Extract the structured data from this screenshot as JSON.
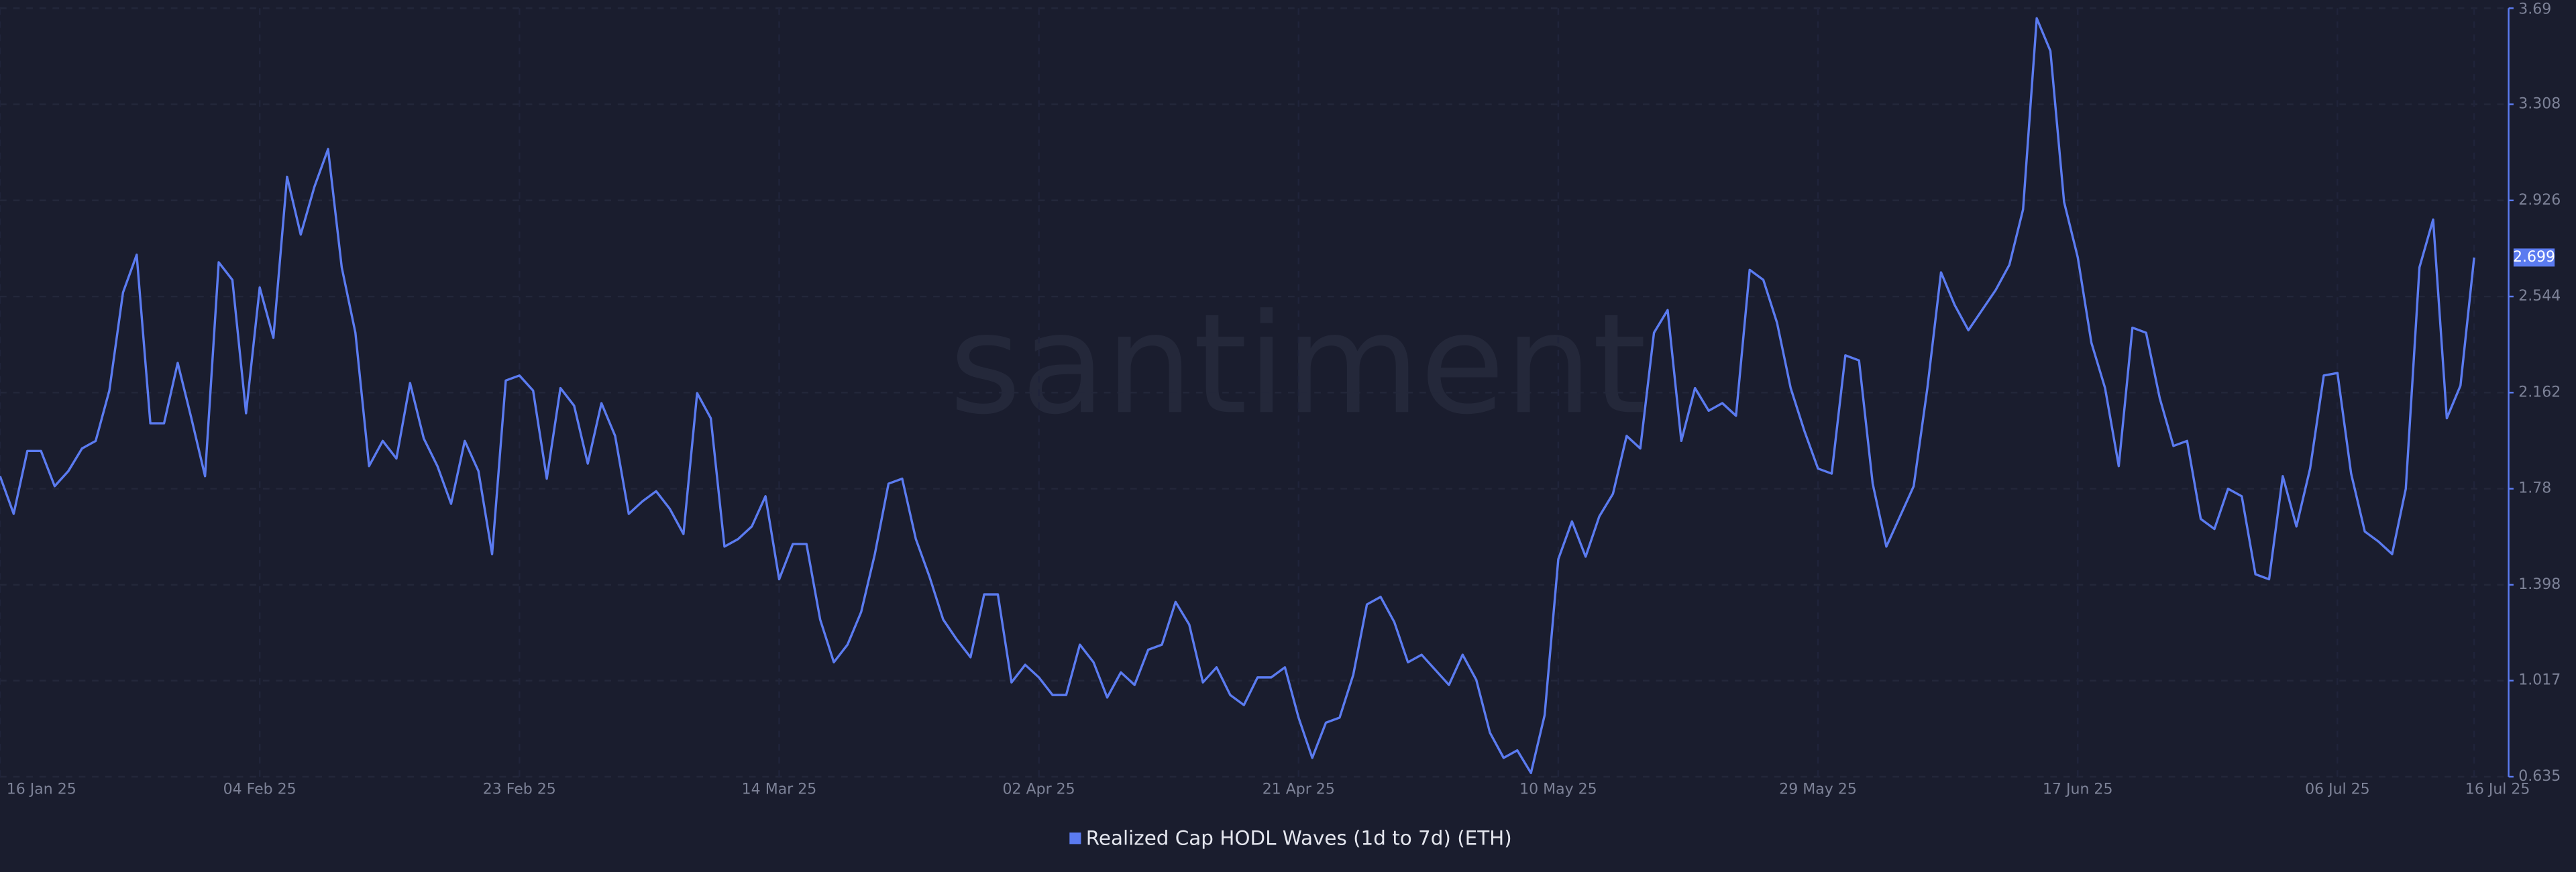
{
  "chart_data": {
    "type": "line",
    "watermark": "santiment",
    "categories": [
      "16 Jan 25",
      null,
      null,
      null,
      null,
      null,
      null,
      null,
      null,
      null,
      null,
      null,
      null,
      null,
      null,
      null,
      null,
      null,
      null,
      "04 Feb 25",
      null,
      null,
      null,
      null,
      null,
      null,
      null,
      null,
      null,
      null,
      null,
      null,
      null,
      null,
      null,
      null,
      null,
      null,
      "23 Feb 25",
      null,
      null,
      null,
      null,
      null,
      null,
      null,
      null,
      null,
      null,
      null,
      null,
      null,
      null,
      null,
      null,
      null,
      null,
      "14 Mar 25",
      null,
      null,
      null,
      null,
      null,
      null,
      null,
      null,
      null,
      null,
      null,
      null,
      null,
      null,
      null,
      null,
      null,
      null,
      "02 Apr 25",
      null,
      null,
      null,
      null,
      null,
      null,
      null,
      null,
      null,
      null,
      null,
      null,
      null,
      null,
      null,
      null,
      null,
      null,
      "21 Apr 25",
      null,
      null,
      null,
      null,
      null,
      null,
      null,
      null,
      null,
      null,
      null,
      null,
      null,
      null,
      null,
      null,
      null,
      null,
      "10 May 25",
      null,
      null,
      null,
      null,
      null,
      null,
      null,
      null,
      null,
      null,
      null,
      null,
      null,
      null,
      null,
      null,
      null,
      null,
      "29 May 25",
      null,
      null,
      null,
      null,
      null,
      null,
      null,
      null,
      null,
      null,
      null,
      null,
      null,
      null,
      null,
      null,
      null,
      null,
      "17 Jun 25",
      null,
      null,
      null,
      null,
      null,
      null,
      null,
      null,
      null,
      null,
      null,
      null,
      null,
      null,
      null,
      null,
      null,
      null,
      "06 Jul 25",
      null,
      null,
      null,
      null,
      null,
      null,
      null,
      null,
      null,
      "16 Jul 25"
    ],
    "series": [
      {
        "name": "Realized Cap HODL Waves (1d to 7d) (ETH)",
        "color": "#5b7bf0",
        "values": [
          1.83,
          1.68,
          1.93,
          1.93,
          1.79,
          1.85,
          1.94,
          1.97,
          2.17,
          2.56,
          2.71,
          2.04,
          2.04,
          2.28,
          2.06,
          1.83,
          2.68,
          2.61,
          2.08,
          2.58,
          2.38,
          3.02,
          2.79,
          2.98,
          3.13,
          2.66,
          2.4,
          1.87,
          1.97,
          1.9,
          2.2,
          1.98,
          1.87,
          1.72,
          1.97,
          1.85,
          1.52,
          2.21,
          2.23,
          2.17,
          1.82,
          2.18,
          2.11,
          1.88,
          2.12,
          1.99,
          1.68,
          1.73,
          1.77,
          1.7,
          1.6,
          2.16,
          2.06,
          1.55,
          1.58,
          1.63,
          1.75,
          1.42,
          1.56,
          1.56,
          1.26,
          1.09,
          1.16,
          1.29,
          1.52,
          1.8,
          1.82,
          1.58,
          1.43,
          1.26,
          1.18,
          1.11,
          1.36,
          1.36,
          1.01,
          1.08,
          1.03,
          0.96,
          0.96,
          1.16,
          1.09,
          0.95,
          1.05,
          1.0,
          1.14,
          1.16,
          1.33,
          1.24,
          1.01,
          1.07,
          0.96,
          0.92,
          1.03,
          1.03,
          1.07,
          0.87,
          0.71,
          0.85,
          0.87,
          1.04,
          1.32,
          1.35,
          1.25,
          1.09,
          1.12,
          1.06,
          1.0,
          1.12,
          1.02,
          0.81,
          0.71,
          0.74,
          0.65,
          0.88,
          1.5,
          1.65,
          1.51,
          1.67,
          1.76,
          1.99,
          1.94,
          2.4,
          2.49,
          1.97,
          2.18,
          2.09,
          2.12,
          2.07,
          2.65,
          2.61,
          2.44,
          2.18,
          2.01,
          1.86,
          1.84,
          2.31,
          2.29,
          1.8,
          1.55,
          1.67,
          1.79,
          2.18,
          2.64,
          2.51,
          2.41,
          2.49,
          2.57,
          2.67,
          2.89,
          3.65,
          3.52,
          2.92,
          2.7,
          2.36,
          2.18,
          1.87,
          2.42,
          2.4,
          2.14,
          1.95,
          1.97,
          1.66,
          1.62,
          1.78,
          1.75,
          1.44,
          1.42,
          1.83,
          1.63,
          1.86,
          2.23,
          2.24,
          1.84,
          1.61,
          1.57,
          1.52,
          1.78,
          2.66,
          2.85,
          2.06,
          2.19,
          2.699
        ]
      }
    ],
    "ylim": [
      0.635,
      3.69
    ],
    "yticks": [
      0.635,
      1.017,
      1.398,
      1.78,
      2.162,
      2.544,
      2.926,
      3.308,
      3.69
    ],
    "grid": true,
    "legend": "bottom"
  }
}
